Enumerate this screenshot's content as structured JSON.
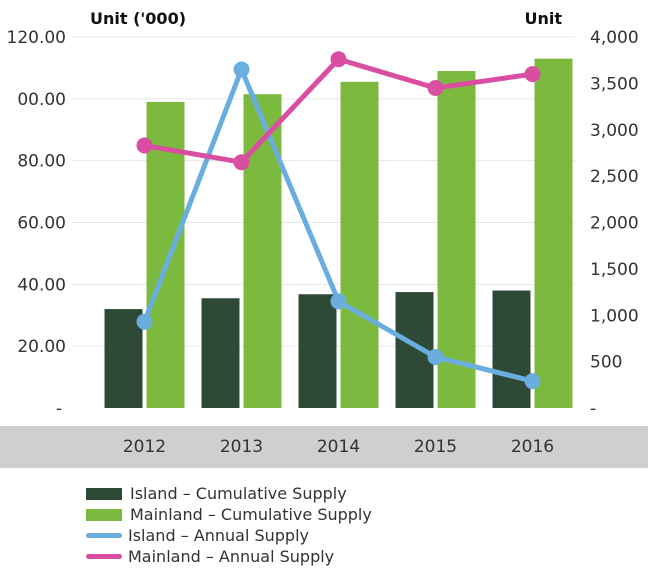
{
  "chart_data": {
    "type": "bar",
    "categories": [
      "2012",
      "2013",
      "2014",
      "2015",
      "2016"
    ],
    "left_axis": {
      "label": "Unit ('000)",
      "ticks": [
        "-",
        "20.00",
        "40.00",
        "60.00",
        "80.00",
        "00.00",
        "120.00"
      ],
      "ylim": [
        0,
        120
      ]
    },
    "right_axis": {
      "label": "Unit",
      "ticks": [
        "-",
        "500",
        "1,000",
        "1,500",
        "2,000",
        "2,500",
        "3,000",
        "3,500",
        "4,000"
      ],
      "ylim": [
        0,
        4000
      ]
    },
    "series": [
      {
        "name": "Island – Cumulative Supply",
        "type": "bar",
        "axis": "left",
        "color": "#2e4a36",
        "values": [
          32.0,
          35.5,
          36.8,
          37.5,
          38.0
        ]
      },
      {
        "name": "Mainland – Cumulative Supply",
        "type": "bar",
        "axis": "left",
        "color": "#7cba3f",
        "values": [
          99.0,
          101.5,
          105.5,
          109.0,
          113.0
        ]
      },
      {
        "name": "Island – Annual Supply",
        "type": "line",
        "axis": "right",
        "color": "#6aaee0",
        "values": [
          930,
          3650,
          1150,
          550,
          290
        ]
      },
      {
        "name": "Mainland – Annual Supply",
        "type": "line",
        "axis": "right",
        "color": "#d94ea0",
        "values": [
          2830,
          2650,
          3760,
          3450,
          3600
        ]
      }
    ],
    "legend_position": "bottom-left",
    "grid": true
  },
  "legend": {
    "island_cumulative": "Island – Cumulative Supply",
    "mainland_cumulative": "Mainland – Cumulative Supply",
    "island_annual": "Island – Annual Supply",
    "mainland_annual": "Mainland – Annual Supply"
  },
  "colors": {
    "island_bar": "#2e4a36",
    "mainland_bar": "#7cba3f",
    "island_line": "#6aaee0",
    "mainland_line": "#d94ea0",
    "xaxis_band": "#cfcfd1"
  }
}
